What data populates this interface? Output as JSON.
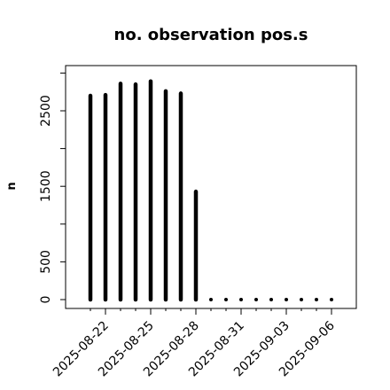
{
  "chart_data": {
    "type": "bar",
    "title": "no. observation pos.s",
    "xlabel": "",
    "ylabel": "n",
    "x": [
      "2025-08-21",
      "2025-08-22",
      "2025-08-23",
      "2025-08-24",
      "2025-08-25",
      "2025-08-26",
      "2025-08-27",
      "2025-08-28",
      "2025-08-29",
      "2025-08-30",
      "2025-08-31",
      "2025-09-01",
      "2025-09-02",
      "2025-09-03",
      "2025-09-04",
      "2025-09-05",
      "2025-09-06"
    ],
    "values": [
      2700,
      2710,
      2860,
      2850,
      2890,
      2760,
      2730,
      1430,
      0,
      0,
      0,
      0,
      0,
      0,
      0,
      0,
      0
    ],
    "ylim": [
      0,
      3000
    ],
    "y_ticks": [
      0,
      500,
      1500,
      2500
    ],
    "x_ticks": [
      "2025-08-22",
      "2025-08-25",
      "2025-08-28",
      "2025-08-31",
      "2025-09-03",
      "2025-09-06"
    ],
    "highlight_tick": "2025-08-28",
    "highlight_color": "#228b22",
    "bar_color": "#000000",
    "grid": false,
    "legend": "none"
  }
}
